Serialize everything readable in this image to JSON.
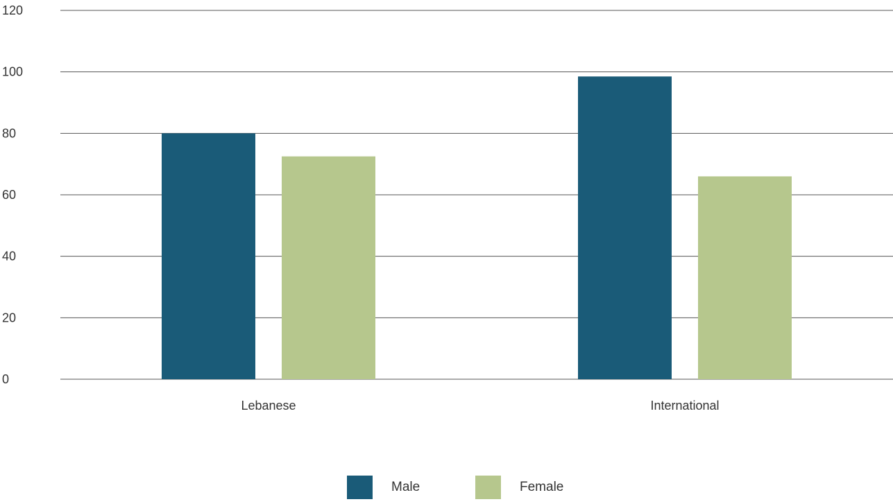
{
  "chart_data": {
    "type": "bar",
    "title": "",
    "xlabel": "",
    "ylabel": "",
    "categories": [
      "Lebanese",
      "International"
    ],
    "series": [
      {
        "name": "Male",
        "values": [
          80,
          98.5
        ],
        "color": "#1a5b78"
      },
      {
        "name": "Female",
        "values": [
          72.5,
          66
        ],
        "color": "#b6c78d"
      }
    ],
    "ylim": [
      0,
      120
    ],
    "yticks": [
      0,
      20,
      40,
      60,
      80,
      100,
      120
    ],
    "grid": true,
    "legend_position": "bottom-center"
  }
}
